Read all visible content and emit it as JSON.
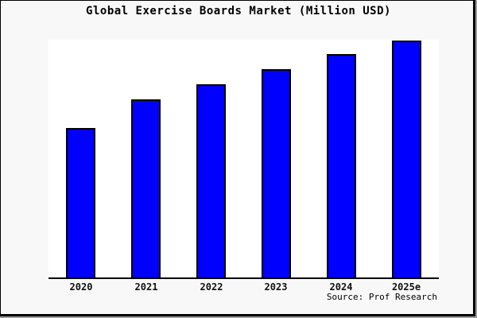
{
  "title": "Global Exercise Boards Market (Million USD)",
  "source_credit": "Source: Prof Research",
  "colors": {
    "bar_fill": "#0000ff",
    "bar_edge": "#000000",
    "plot_background": "#ffffff",
    "figure_background": "#f8f8f8",
    "frame": "#000000",
    "text": "#000000"
  },
  "chart_data": {
    "type": "bar",
    "title": "Global Exercise Boards Market (Million USD)",
    "categories": [
      "2020",
      "2021",
      "2022",
      "2023",
      "2024",
      "2025e"
    ],
    "values": [
      63.2,
      75.3,
      81.6,
      88.0,
      94.3,
      100
    ],
    "xlabel": "",
    "ylabel": "",
    "ylim": [
      0,
      100.3
    ],
    "grid": false,
    "legend": null,
    "y_axis_labels_shown": false,
    "note": "No y-axis ticks or value labels are shown in the chart; bar values are estimated relative heights with the 2025e bar = 100.",
    "annotation": "Source: Prof Research"
  }
}
